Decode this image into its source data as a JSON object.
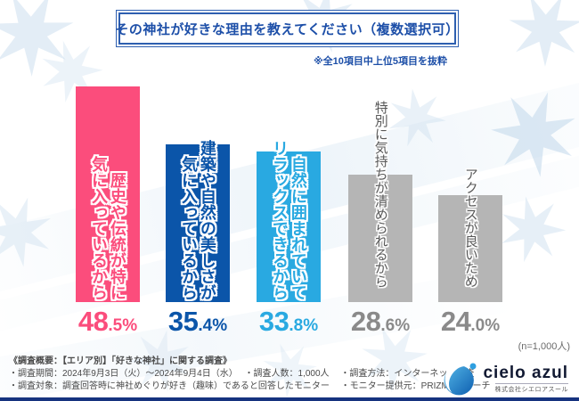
{
  "title": "その神社が好きな理由を教えてください（複数選択可）",
  "note": "※全10項目中上位5項目を抜粋",
  "sample_label": "(n=1,000人)",
  "chart": {
    "bars": [
      {
        "label": "歴史や伝統が特に\n気に入っているから",
        "value": 48.5,
        "value_main": "48",
        "value_frac": ".5%",
        "color": "#fb4d7c",
        "label_color": "#fb4d7c",
        "value_color": "#fb4d7c"
      },
      {
        "label": "建築や自然の美しさが\n気に入っているから",
        "value": 35.4,
        "value_main": "35",
        "value_frac": ".4%",
        "color": "#0b55a9",
        "label_color": "#0b55a9",
        "value_color": "#0b55a9"
      },
      {
        "label": "自然に囲まれていて\nリラックスできるから",
        "value": 33.8,
        "value_main": "33",
        "value_frac": ".8%",
        "color": "#29a9e1",
        "label_color": "#29a9e1",
        "value_color": "#29a9e1"
      },
      {
        "label": "特別に気持ちが清められるから",
        "value": 28.6,
        "value_main": "28",
        "value_frac": ".6%",
        "color": "#b5b5b5",
        "label_color": "#595959",
        "value_color": "#8a8a8a"
      },
      {
        "label": "アクセスが良いため",
        "value": 24.0,
        "value_main": "24",
        "value_frac": ".0%",
        "color": "#b5b5b5",
        "label_color": "#595959",
        "value_color": "#8a8a8a"
      }
    ]
  },
  "chart_data": {
    "type": "bar",
    "title": "その神社が好きな理由を教えてください（複数選択可）",
    "note": "※全10項目中上位5項目を抜粋",
    "n_label": "(n=1,000人)",
    "unit": "%",
    "categories": [
      "歴史や伝統が特に気に入っているから",
      "建築や自然の美しさが気に入っているから",
      "自然に囲まれていてリラックスできるから",
      "特別に気持ちが清められるから",
      "アクセスが良いため"
    ],
    "values": [
      48.5,
      35.4,
      33.8,
      28.6,
      24.0
    ],
    "bar_colors": [
      "#fb4d7c",
      "#0b55a9",
      "#29a9e1",
      "#b5b5b5",
      "#b5b5b5"
    ],
    "ylim": [
      0,
      50
    ],
    "grid": false,
    "value_labels_position": "below-bar"
  },
  "footer": {
    "heading": "《調査概要：【エリア別】「好きな神社」に関する調査》",
    "line1": "・調査期間：2024年9月3日（火）～2024年9月4日（水）　 ・調査人数：1,000人　 ・調査方法：インターネット調査",
    "line2": "・調査対象：調査回答時に神社めぐりが好き（趣味）であると回答したモニター　 ・モニター提供元：PRIZMAリサーチ"
  },
  "logo": {
    "name": "cielo azul",
    "company": "株式会社シエロアスール"
  }
}
